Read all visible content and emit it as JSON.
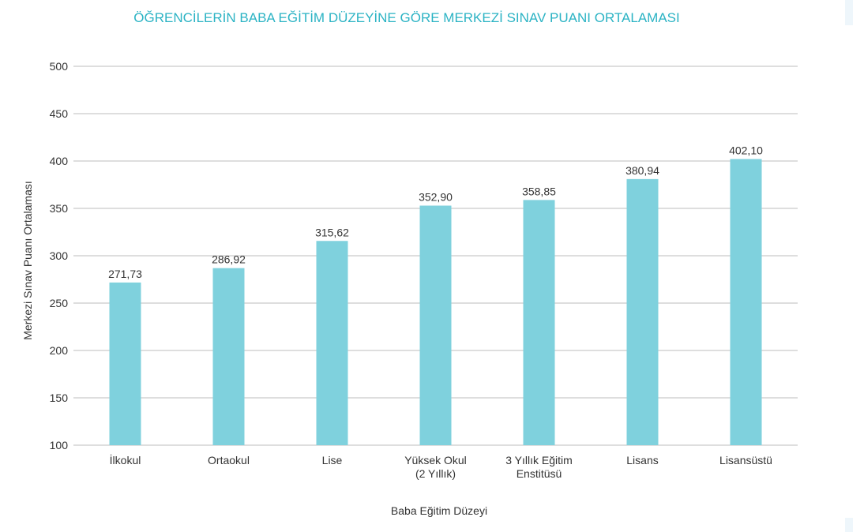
{
  "colors": {
    "bar": "#7fd1dd",
    "title": "#2bb3c4",
    "grid": "#bdbdbd",
    "text": "#333333"
  },
  "chart_data": {
    "type": "bar",
    "title": "ÖĞRENCİLERİN BABA EĞİTİM DÜZEYİNE GÖRE MERKEZİ SINAV PUANI ORTALAMASI",
    "xlabel": "Baba Eğitim Düzeyi",
    "ylabel": "Merkezi Sınav Puanı Ortalaması",
    "categories": [
      [
        "İlkokul"
      ],
      [
        "Ortaokul"
      ],
      [
        "Lise"
      ],
      [
        "Yüksek Okul",
        "(2 Yıllık)"
      ],
      [
        "3 Yıllık Eğitim",
        "Enstitüsü"
      ],
      [
        "Lisans"
      ],
      [
        "Lisansüstü"
      ]
    ],
    "values": [
      271.73,
      286.92,
      315.62,
      352.9,
      358.85,
      380.94,
      402.1
    ],
    "value_labels": [
      "271,73",
      "286,92",
      "315,62",
      "352,90",
      "358,85",
      "380,94",
      "402,10"
    ],
    "ylim": [
      100,
      500
    ],
    "yticks": [
      100,
      150,
      200,
      250,
      300,
      350,
      400,
      450,
      500
    ],
    "grid": true,
    "legend": "none"
  }
}
